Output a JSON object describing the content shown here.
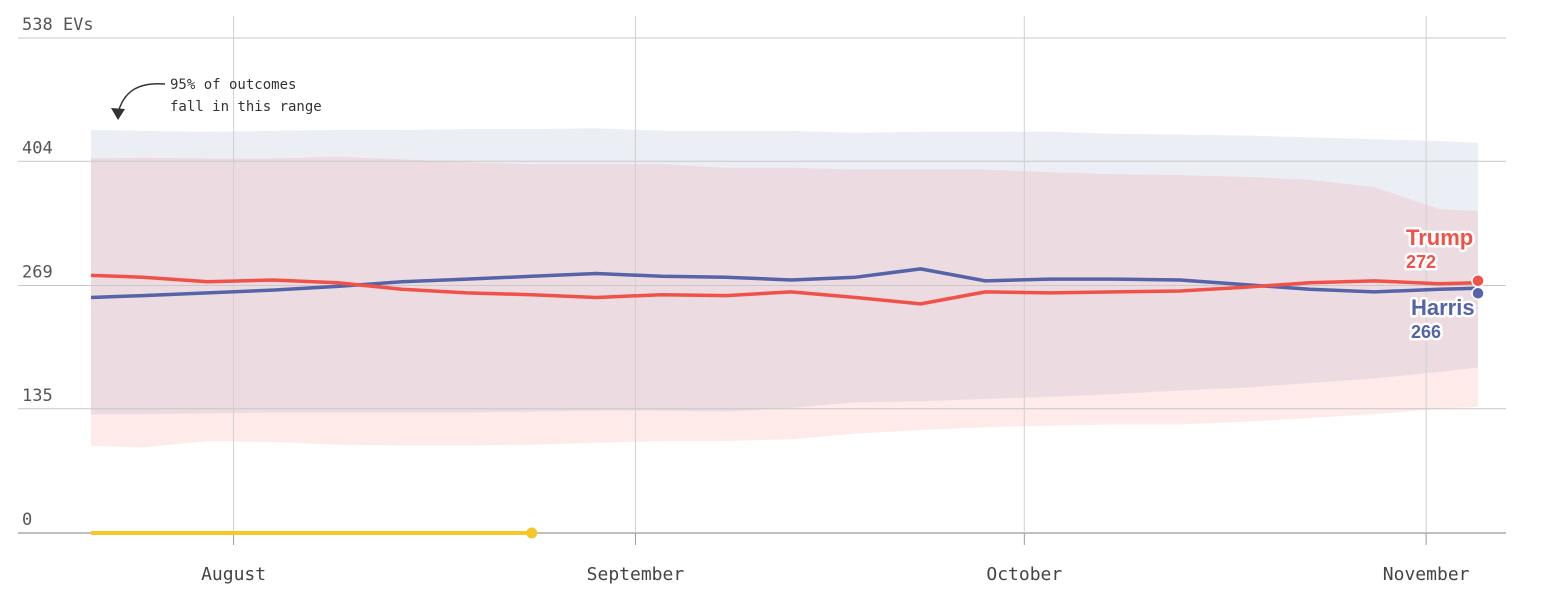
{
  "chart_data": {
    "type": "area",
    "yunit": "EVs",
    "ylim": [
      0,
      538
    ],
    "yticks": [
      0,
      135,
      269,
      404,
      538
    ],
    "ytick_labels": [
      "0",
      "135",
      "269",
      "404",
      "538 EVs"
    ],
    "x_range": [
      "2024-07-21",
      "2024-11-05"
    ],
    "xticks": [
      {
        "date": "2024-08-01",
        "label": "August"
      },
      {
        "date": "2024-09-01",
        "label": "September"
      },
      {
        "date": "2024-10-01",
        "label": "October"
      },
      {
        "date": "2024-11-01",
        "label": "November"
      }
    ],
    "grid": true,
    "annotation": {
      "lines": [
        "95% of outcomes",
        "fall in this range"
      ]
    },
    "x": [
      "2024-07-21",
      "2024-07-25",
      "2024-07-30",
      "2024-08-04",
      "2024-08-09",
      "2024-08-14",
      "2024-08-19",
      "2024-08-24",
      "2024-08-29",
      "2024-09-03",
      "2024-09-08",
      "2024-09-13",
      "2024-09-18",
      "2024-09-23",
      "2024-09-28",
      "2024-10-03",
      "2024-10-08",
      "2024-10-13",
      "2024-10-18",
      "2024-10-23",
      "2024-10-28",
      "2024-11-02",
      "2024-11-05"
    ],
    "series": [
      {
        "name": "Trump",
        "final": "272",
        "color": "#f0524a",
        "values": [
          280,
          278,
          273,
          275,
          272,
          265,
          261,
          259,
          256,
          259,
          258,
          262,
          256,
          249,
          262,
          261,
          262,
          263,
          267,
          272,
          274,
          271,
          272
        ],
        "low": [
          95,
          93,
          100,
          99,
          96,
          95,
          95,
          96,
          98,
          100,
          100,
          102,
          108,
          112,
          115,
          117,
          118,
          118,
          121,
          125,
          129,
          135,
          137
        ],
        "high": [
          407,
          408,
          407,
          407,
          409,
          406,
          403,
          401,
          401,
          401,
          397,
          397,
          395,
          395,
          395,
          392,
          390,
          389,
          387,
          384,
          376,
          352,
          350
        ]
      },
      {
        "name": "Harris",
        "final": "266",
        "color": "#5563a8",
        "values": [
          256,
          258,
          261,
          264,
          268,
          273,
          276,
          279,
          282,
          279,
          278,
          275,
          278,
          287,
          274,
          276,
          276,
          275,
          270,
          265,
          262,
          265,
          266
        ]
      }
    ],
    "band_high": [
      438,
      437,
      436,
      437,
      438,
      438,
      439,
      439,
      440,
      437,
      437,
      437,
      435,
      436,
      436,
      436,
      434,
      433,
      432,
      430,
      428,
      426,
      424
    ],
    "band_low": [
      129,
      129,
      130,
      131,
      131,
      131,
      131,
      132,
      133,
      133,
      132,
      136,
      142,
      143,
      146,
      148,
      151,
      155,
      158,
      163,
      168,
      175,
      180
    ],
    "progress": {
      "start": "2024-07-21",
      "end": "2024-08-24",
      "color": "#f5c728"
    }
  }
}
